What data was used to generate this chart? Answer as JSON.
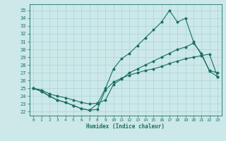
{
  "xlabel": "Humidex (Indice chaleur)",
  "xlim": [
    -0.5,
    23.5
  ],
  "ylim": [
    21.5,
    35.8
  ],
  "yticks": [
    22,
    23,
    24,
    25,
    26,
    27,
    28,
    29,
    30,
    31,
    32,
    33,
    34,
    35
  ],
  "xticks": [
    0,
    1,
    2,
    3,
    4,
    5,
    6,
    7,
    8,
    9,
    10,
    11,
    12,
    13,
    14,
    15,
    16,
    17,
    18,
    19,
    20,
    21,
    22,
    23
  ],
  "bg_color": "#cce8e8",
  "grid_color": "#aad4d4",
  "line_color": "#1a7060",
  "line1_x": [
    0,
    1,
    2,
    3,
    4,
    5,
    6,
    7,
    8,
    9,
    10,
    11,
    12,
    13,
    14,
    15,
    16,
    17,
    18,
    19,
    20,
    21,
    22,
    23
  ],
  "line1_y": [
    25.0,
    24.6,
    24.0,
    23.5,
    23.2,
    22.8,
    22.4,
    22.2,
    23.0,
    25.0,
    27.5,
    28.8,
    29.5,
    30.5,
    31.5,
    32.5,
    33.5,
    35.0,
    33.5,
    34.0,
    31.0,
    29.3,
    27.3,
    27.0
  ],
  "line2_x": [
    0,
    1,
    2,
    3,
    4,
    5,
    6,
    7,
    8,
    9,
    10,
    11,
    12,
    13,
    14,
    15,
    16,
    17,
    18,
    19,
    20,
    21,
    22,
    23
  ],
  "line2_y": [
    25.0,
    24.8,
    24.3,
    24.0,
    23.8,
    23.5,
    23.2,
    23.0,
    23.1,
    23.5,
    25.5,
    26.2,
    27.0,
    27.5,
    28.0,
    28.5,
    29.0,
    29.5,
    30.0,
    30.3,
    30.8,
    29.5,
    27.2,
    26.5
  ],
  "line3_x": [
    0,
    1,
    2,
    3,
    4,
    5,
    6,
    7,
    8,
    9,
    10,
    11,
    12,
    13,
    14,
    15,
    16,
    17,
    18,
    19,
    20,
    21,
    22,
    23
  ],
  "line3_y": [
    25.0,
    24.7,
    24.0,
    23.5,
    23.2,
    22.8,
    22.4,
    22.2,
    22.3,
    24.8,
    25.8,
    26.3,
    26.7,
    27.0,
    27.3,
    27.5,
    27.8,
    28.2,
    28.5,
    28.8,
    29.0,
    29.2,
    29.4,
    26.5
  ]
}
